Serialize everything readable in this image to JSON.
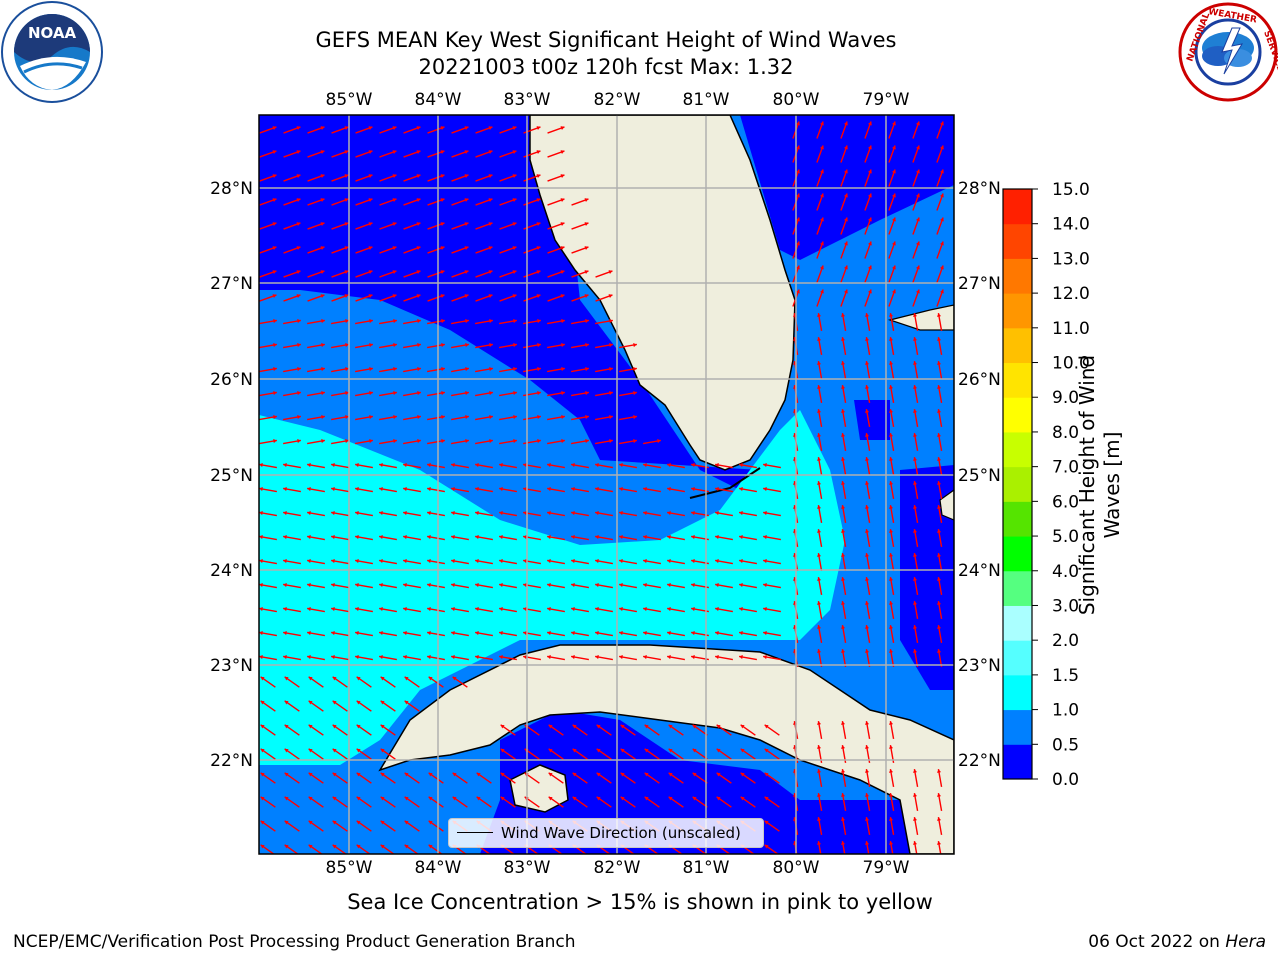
{
  "title": {
    "line1": "GEFS MEAN Key West Significant Height of Wind Waves",
    "line2": "20221003 t00z 120h fcst   Max: 1.32"
  },
  "map": {
    "lon_ticks": [
      "85°W",
      "84°W",
      "83°W",
      "82°W",
      "81°W",
      "80°W",
      "79°W"
    ],
    "lat_ticks": [
      "28°N",
      "27°N",
      "26°N",
      "25°N",
      "24°N",
      "23°N",
      "22°N"
    ],
    "colors": {
      "land": "#efeedd",
      "band_0_05": "#0000ff",
      "band_05_10": "#0080ff",
      "band_10_15": "#00ffff",
      "arrow": "#ff0000",
      "coast": "#000000",
      "grid": "#b0b0b0"
    },
    "legend": {
      "label": "Wind Wave Direction (unscaled)"
    }
  },
  "colorbar": {
    "label_line1": "Significant Height of Wind",
    "label_line2": "Waves [m]",
    "ticks": [
      "0.0",
      "0.5",
      "1.0",
      "1.5",
      "2.0",
      "3.0",
      "4.0",
      "5.0",
      "6.0",
      "7.0",
      "8.0",
      "9.0",
      "10.0",
      "11.0",
      "12.0",
      "13.0",
      "14.0",
      "15.0"
    ],
    "colors": [
      "#0000ff",
      "#0080ff",
      "#00ffff",
      "#55ffff",
      "#aaffff",
      "#55ff80",
      "#00ff00",
      "#55e400",
      "#aaf000",
      "#c8ff00",
      "#ffff00",
      "#ffe400",
      "#ffc000",
      "#ff9600",
      "#ff7800",
      "#ff4500",
      "#ff2000"
    ]
  },
  "sea_ice_note": "Sea Ice Concentration > 15% is shown in pink to yellow",
  "footer": {
    "left": "NCEP/EMC/Verification Post Processing Product Generation Branch",
    "right_date": "06 Oct 2022 on",
    "right_host": "Hera"
  }
}
